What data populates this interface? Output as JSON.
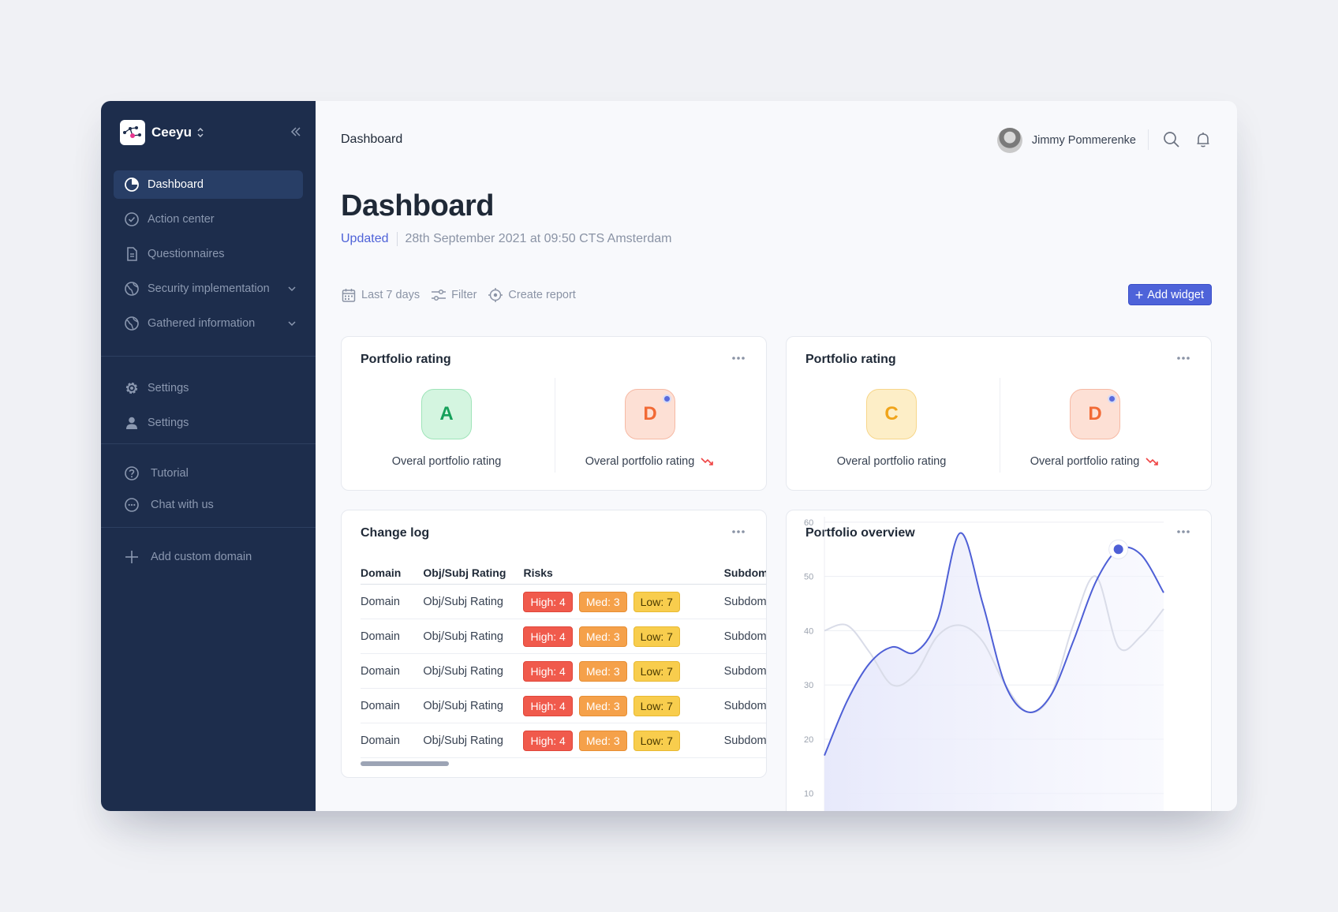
{
  "sidebar": {
    "brand": "Ceeyu",
    "items": [
      {
        "label": "Dashboard",
        "icon": "pie-chart-icon",
        "active": true
      },
      {
        "label": "Action center",
        "icon": "check-circle-icon"
      },
      {
        "label": "Questionnaires",
        "icon": "document-icon"
      },
      {
        "label": "Security implementation",
        "icon": "globe-icon",
        "expandable": true
      },
      {
        "label": "Gathered information",
        "icon": "globe-icon",
        "expandable": true
      }
    ],
    "settings": [
      {
        "label": "Settings",
        "icon": "gear-icon"
      },
      {
        "label": "Settings",
        "icon": "user-icon"
      }
    ],
    "help": [
      {
        "label": "Tutorial",
        "icon": "question-circle-icon"
      },
      {
        "label": "Chat with us",
        "icon": "chat-icon"
      }
    ],
    "add_domain": "Add custom domain"
  },
  "header": {
    "breadcrumb": "Dashboard",
    "user_name": "Jimmy Pommerenke"
  },
  "page": {
    "title": "Dashboard",
    "updated_label": "Updated",
    "updated_value": "28th September 2021 at 09:50 CTS Amsterdam"
  },
  "toolbar": {
    "date_range": "Last 7 days",
    "filter": "Filter",
    "create_report": "Create report",
    "add_widget": "Add widget"
  },
  "ratings": [
    {
      "title": "Portfolio rating",
      "items": [
        {
          "grade": "A",
          "label": "Overal portfolio rating",
          "trend": null
        },
        {
          "grade": "D",
          "label": "Overal portfolio rating",
          "trend": "down"
        }
      ]
    },
    {
      "title": "Portfolio rating",
      "items": [
        {
          "grade": "C",
          "label": "Overal portfolio rating",
          "trend": null
        },
        {
          "grade": "D",
          "label": "Overal portfolio rating",
          "trend": "down"
        }
      ]
    }
  ],
  "changelog": {
    "title": "Change log",
    "columns": [
      "Domain",
      "Obj/Subj Rating",
      "Risks",
      "Subdom"
    ],
    "rows": [
      {
        "domain": "Domain",
        "rating": "Obj/Subj Rating",
        "high": "High: 4",
        "med": "Med: 3",
        "low": "Low: 7",
        "sub": "Subdom"
      },
      {
        "domain": "Domain",
        "rating": "Obj/Subj Rating",
        "high": "High: 4",
        "med": "Med: 3",
        "low": "Low: 7",
        "sub": "Subdom"
      },
      {
        "domain": "Domain",
        "rating": "Obj/Subj Rating",
        "high": "High: 4",
        "med": "Med: 3",
        "low": "Low: 7",
        "sub": "Subdom"
      },
      {
        "domain": "Domain",
        "rating": "Obj/Subj Rating",
        "high": "High: 4",
        "med": "Med: 3",
        "low": "Low: 7",
        "sub": "Subdom"
      },
      {
        "domain": "Domain",
        "rating": "Obj/Subj Rating",
        "high": "High: 4",
        "med": "Med: 3",
        "low": "Low: 7",
        "sub": "Subdom"
      }
    ]
  },
  "overview": {
    "title": "Portfolio overview"
  },
  "colors": {
    "sidebar": "#1d2d4c",
    "accent": "#4e63d9",
    "high": "#f05a4c",
    "med": "#f5a14a",
    "low": "#f8cd4d"
  },
  "chart_data": {
    "type": "line",
    "title": "Portfolio overview",
    "xlabel": "",
    "ylabel": "",
    "yticks": [
      10,
      20,
      30,
      40,
      50,
      60
    ],
    "ylim": [
      4,
      61
    ],
    "grid": true,
    "series": [
      {
        "values": [
          17,
          27,
          34,
          37,
          36,
          42,
          58,
          45,
          30,
          25,
          28,
          38,
          49,
          55,
          54,
          47
        ]
      },
      {
        "values": [
          40,
          41,
          36,
          30,
          32,
          39,
          41,
          38,
          30,
          25,
          28,
          41,
          50,
          37,
          39,
          44
        ]
      }
    ],
    "highlight": {
      "index": 13,
      "value": 55
    }
  }
}
